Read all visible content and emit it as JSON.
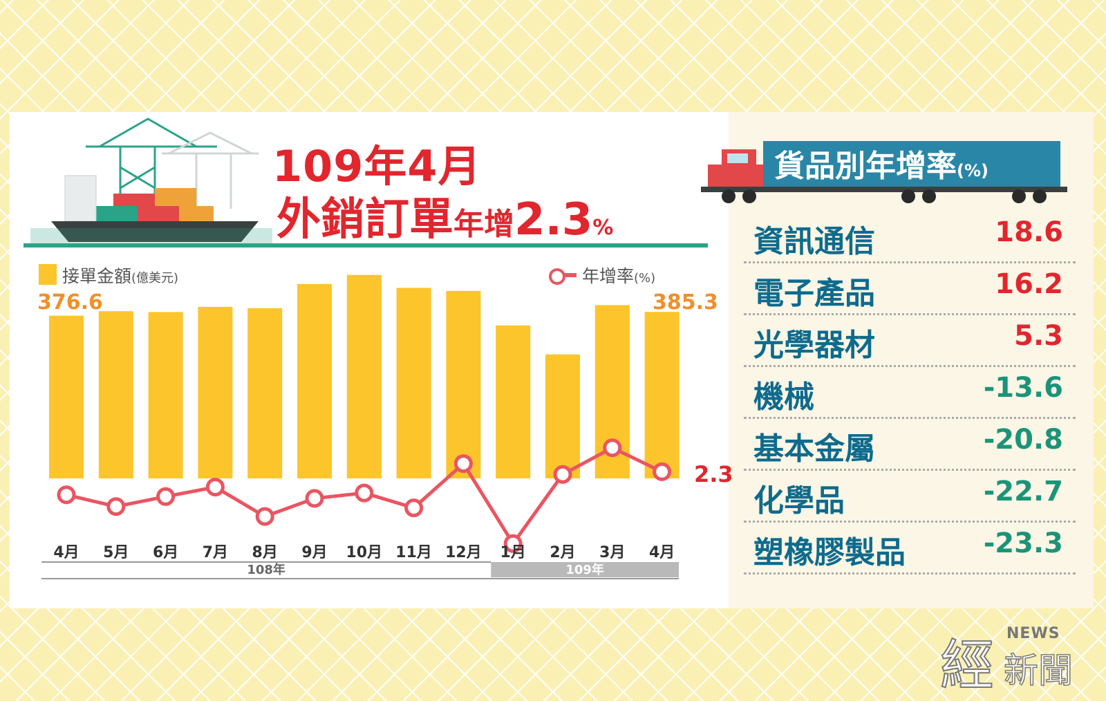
{
  "header": {
    "title_line1": "109年4月",
    "title_main": "外銷訂單",
    "title_small": "年增",
    "title_value": "2.3",
    "title_unit": "%"
  },
  "legend": {
    "bar_label": "接單金額",
    "bar_unit": "(億美元)",
    "line_label": "年增率",
    "line_unit": "(%)"
  },
  "annotations": {
    "first_value": "376.6",
    "last_value": "385.3",
    "last_yoy": "2.3"
  },
  "chart_data": {
    "type": "bar",
    "categories": [
      "4月",
      "5月",
      "6月",
      "7月",
      "8月",
      "9月",
      "10月",
      "11月",
      "12月",
      "1月",
      "2月",
      "3月",
      "4月"
    ],
    "year_groups": [
      {
        "label": "108年",
        "categories": [
          "4月",
          "5月",
          "6月",
          "7月",
          "8月",
          "9月",
          "10月",
          "11月",
          "12月"
        ]
      },
      {
        "label": "109年",
        "categories": [
          "1月",
          "2月",
          "3月",
          "4月"
        ]
      }
    ],
    "series": [
      {
        "name": "接單金額(億美元)",
        "kind": "bar",
        "values": [
          376.6,
          387.0,
          385.0,
          397.0,
          394.0,
          450.0,
          471.0,
          441.0,
          434.0,
          354.0,
          287.0,
          401.0,
          385.3
        ]
      },
      {
        "name": "年增率(%)",
        "kind": "line",
        "values": [
          -2.8,
          -5.4,
          -3.2,
          -1.1,
          -7.6,
          -3.6,
          -2.4,
          -5.7,
          4.1,
          -13.6,
          1.7,
          7.6,
          2.3
        ]
      }
    ],
    "bar_range": [
      0,
      480
    ],
    "line_range": [
      -16,
      10
    ]
  },
  "category_panel": {
    "title": "貨品別年增率",
    "title_unit": "(%)",
    "items": [
      {
        "label": "資訊通信",
        "value": "18.6",
        "color": "#e1262e"
      },
      {
        "label": "電子產品",
        "value": "16.2",
        "color": "#e1262e"
      },
      {
        "label": "光學器材",
        "value": "5.3",
        "color": "#e1262e"
      },
      {
        "label": "機械",
        "value": "-13.6",
        "color": "#1a9479"
      },
      {
        "label": "基本金屬",
        "value": "-20.8",
        "color": "#1a9479"
      },
      {
        "label": "化學品",
        "value": "-22.7",
        "color": "#1a9479"
      },
      {
        "label": "塑橡膠製品",
        "value": "-23.3",
        "color": "#1a9479"
      }
    ]
  },
  "logo": {
    "big": "經",
    "news": "NEWS",
    "small": "新聞"
  }
}
